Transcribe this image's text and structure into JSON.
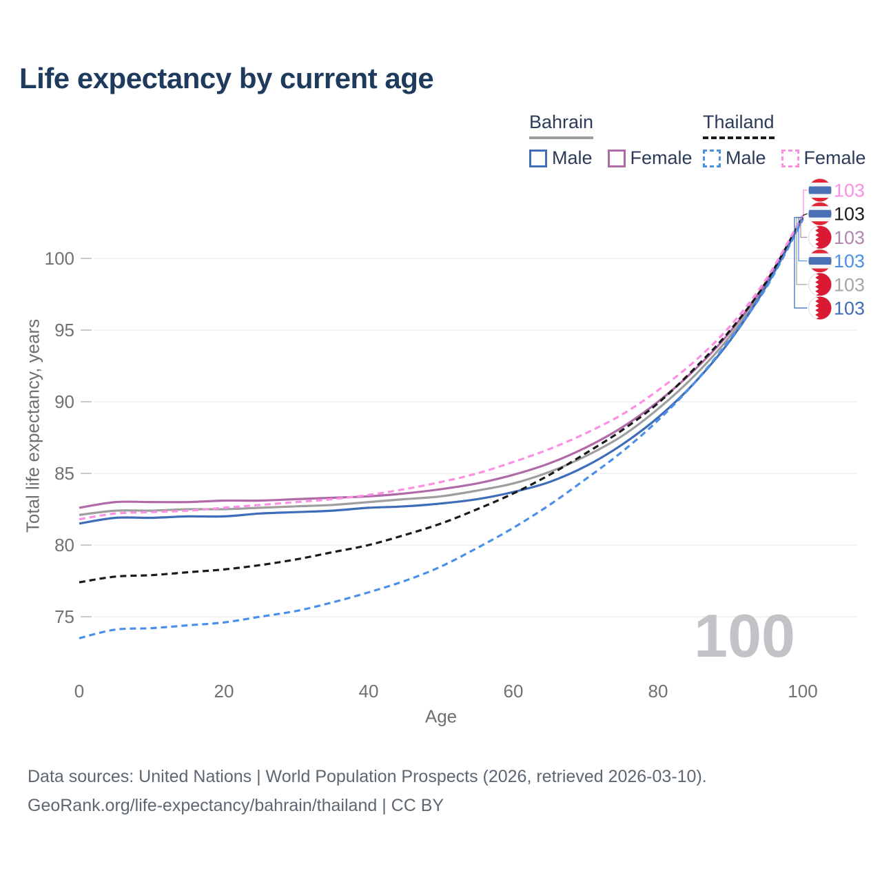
{
  "header": {
    "title": "Life expectancy by current age"
  },
  "legend": {
    "groups": [
      {
        "label": "Bahrain",
        "line_style": "solid",
        "underline_color": "#9e9e9e",
        "items": [
          {
            "label": "Male",
            "color": "#3e6cb8"
          },
          {
            "label": "Female",
            "color": "#b06aa8"
          }
        ]
      },
      {
        "label": "Thailand",
        "line_style": "dashed",
        "underline_color": "#1a1a1a",
        "items": [
          {
            "label": "Male",
            "color": "#4a90e8"
          },
          {
            "label": "Female",
            "color": "#fb8fe4"
          }
        ]
      }
    ]
  },
  "axes": {
    "x_label": "Age",
    "y_label": "Total life expectancy, years"
  },
  "watermark": {
    "value": "100"
  },
  "footer": {
    "line1": "Data sources: United Nations | World Population Prospects (2026, retrieved 2026-03-10).",
    "line2": "GeoRank.org/life-expectancy/bahrain/thailand | CC BY"
  },
  "chart_data": {
    "type": "line",
    "title": "Life expectancy by current age",
    "xlabel": "Age",
    "ylabel": "Total life expectancy, years",
    "xlim": [
      0,
      100
    ],
    "ylim": [
      72.5,
      103.5
    ],
    "x_ticks": [
      0,
      20,
      40,
      60,
      80,
      100
    ],
    "y_ticks": [
      75,
      80,
      85,
      90,
      95,
      100
    ],
    "grid": "horizontal",
    "legend_position": "top-right",
    "x": [
      0,
      5,
      10,
      15,
      20,
      25,
      30,
      35,
      40,
      45,
      50,
      55,
      60,
      65,
      70,
      75,
      80,
      85,
      90,
      95,
      100
    ],
    "series": [
      {
        "name": "Bahrain",
        "country": "Bahrain",
        "sex": "All",
        "color": "#9e9e9e",
        "dash": "solid",
        "values": [
          82.1,
          82.4,
          82.4,
          82.5,
          82.5,
          82.6,
          82.7,
          82.8,
          83.0,
          83.2,
          83.4,
          83.8,
          84.3,
          85.1,
          86.2,
          87.6,
          89.5,
          91.8,
          94.6,
          98.2,
          102.8
        ]
      },
      {
        "name": "Bahrain Female",
        "country": "Bahrain",
        "sex": "Female",
        "color": "#b06aa8",
        "dash": "solid",
        "values": [
          82.6,
          83.0,
          83.0,
          83.0,
          83.1,
          83.1,
          83.2,
          83.3,
          83.4,
          83.6,
          83.9,
          84.3,
          84.9,
          85.7,
          86.8,
          88.2,
          90.0,
          92.2,
          94.9,
          98.4,
          102.9
        ]
      },
      {
        "name": "Bahrain Male",
        "country": "Bahrain",
        "sex": "Male",
        "color": "#3e6cb8",
        "dash": "solid",
        "values": [
          81.5,
          81.9,
          81.9,
          82.0,
          82.0,
          82.2,
          82.3,
          82.4,
          82.6,
          82.7,
          82.9,
          83.2,
          83.7,
          84.4,
          85.5,
          87.0,
          88.9,
          91.3,
          94.3,
          98.1,
          102.8
        ]
      },
      {
        "name": "Thailand",
        "country": "Thailand",
        "sex": "All",
        "color": "#1a1a1a",
        "dash": "dashed",
        "values": [
          77.4,
          77.8,
          77.9,
          78.1,
          78.3,
          78.6,
          79.0,
          79.5,
          80.0,
          80.7,
          81.5,
          82.5,
          83.6,
          84.9,
          86.4,
          88.0,
          89.9,
          92.3,
          95.0,
          98.4,
          102.9
        ]
      },
      {
        "name": "Thailand Female",
        "country": "Thailand",
        "sex": "Female",
        "color": "#fb8fe4",
        "dash": "dashed",
        "values": [
          81.8,
          82.2,
          82.3,
          82.4,
          82.6,
          82.8,
          83.0,
          83.2,
          83.5,
          83.9,
          84.4,
          85.0,
          85.8,
          86.7,
          87.8,
          89.1,
          90.8,
          92.8,
          95.3,
          98.6,
          103.0
        ]
      },
      {
        "name": "Thailand Male",
        "country": "Thailand",
        "sex": "Male",
        "color": "#4a90e8",
        "dash": "dashed",
        "values": [
          73.5,
          74.1,
          74.2,
          74.4,
          74.6,
          75.0,
          75.4,
          76.0,
          76.7,
          77.5,
          78.5,
          79.8,
          81.2,
          82.8,
          84.6,
          86.5,
          88.7,
          91.3,
          94.4,
          98.0,
          102.7
        ]
      }
    ],
    "end_labels": [
      {
        "value": "103",
        "series": "Thailand Female",
        "color": "#fb8fe4",
        "flag": "thailand"
      },
      {
        "value": "103",
        "series": "Thailand",
        "color": "#1a1a1a",
        "flag": "thailand"
      },
      {
        "value": "103",
        "series": "Bahrain Female",
        "color": "#b185ae",
        "flag": "bahrain"
      },
      {
        "value": "103",
        "series": "Thailand Male",
        "color": "#4a90e8",
        "flag": "thailand"
      },
      {
        "value": "103",
        "series": "Bahrain",
        "color": "#a6a6a6",
        "flag": "bahrain"
      },
      {
        "value": "103",
        "series": "Bahrain Male",
        "color": "#3e6cb8",
        "flag": "bahrain"
      }
    ],
    "flag_colors": {
      "thailand": {
        "red": "#e32636",
        "white": "#f4f5f8",
        "blue": "#4a6fb5"
      },
      "bahrain": {
        "red": "#da1a35",
        "white": "#f4f5f8"
      }
    }
  }
}
